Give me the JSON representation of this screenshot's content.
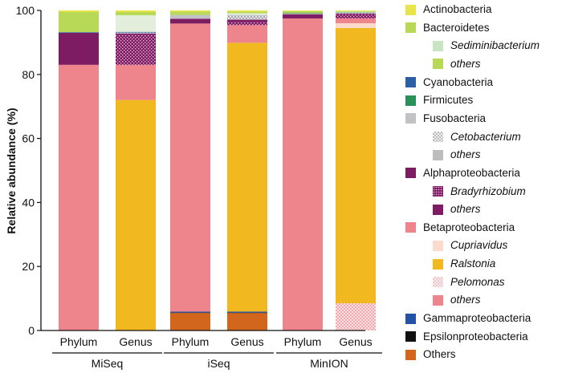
{
  "chart_data": {
    "type": "bar",
    "stacked": true,
    "ylabel": "Relative abundance (%)",
    "ylim": [
      0,
      100
    ],
    "yticks": [
      0,
      20,
      40,
      60,
      80,
      100
    ],
    "grid": false,
    "legend_position": "right",
    "categories": [
      "Phylum",
      "Genus",
      "Phylum",
      "Genus",
      "Phylum",
      "Genus"
    ],
    "groups": [
      {
        "label": "MiSeq",
        "bars": [
          0,
          1
        ]
      },
      {
        "label": "iSeq",
        "bars": [
          2,
          3
        ]
      },
      {
        "label": "MinION",
        "bars": [
          4,
          5
        ]
      }
    ],
    "series": [
      {
        "name": "Others",
        "color": "#d2661c",
        "pattern": "solid",
        "values": [
          0,
          0,
          5.5,
          5.5,
          0,
          0
        ]
      },
      {
        "name": "Epsilonproteobacteria",
        "color": "#111111",
        "pattern": "solid",
        "values": [
          0,
          0,
          0.1,
          0.1,
          0,
          0
        ]
      },
      {
        "name": "Gammaproteobacteria",
        "color": "#2452a6",
        "pattern": "solid",
        "values": [
          0,
          0,
          0.3,
          0.3,
          0,
          0
        ]
      },
      {
        "name": "Betaproteobacteria",
        "color": "#ee858c",
        "pattern": "solid",
        "values": [
          83,
          0,
          90,
          0,
          97.5,
          0
        ]
      },
      {
        "name": "Pelomonas",
        "color": "#f6c0c4",
        "pattern": "checker",
        "values": [
          0,
          0,
          0,
          0,
          0,
          8.5
        ]
      },
      {
        "name": "Ralstonia",
        "color": "#f1b820",
        "pattern": "solid",
        "values": [
          0,
          72,
          0,
          84,
          0,
          86
        ]
      },
      {
        "name": "Cupriavidus",
        "color": "#fbdccc",
        "pattern": "solid",
        "values": [
          0,
          0,
          0,
          0,
          0,
          1.5
        ]
      },
      {
        "name": "Betaproteobacteria others",
        "color": "#ee858c",
        "pattern": "solid",
        "values": [
          0,
          11,
          0,
          5.5,
          0,
          1.5
        ]
      },
      {
        "name": "Alphaproteobacteria",
        "color": "#7e1c63",
        "pattern": "solid",
        "values": [
          10,
          0,
          1.5,
          0,
          1.3,
          0
        ]
      },
      {
        "name": "Bradyrhizobium",
        "color": "#7e1c63",
        "pattern": "dots",
        "values": [
          0,
          9.3,
          0,
          1,
          0,
          1.2
        ]
      },
      {
        "name": "Alphaproteobacteria others",
        "color": "#7e1c63",
        "pattern": "solid",
        "values": [
          0,
          0.5,
          0,
          0.7,
          0,
          0.3
        ]
      },
      {
        "name": "Fusobacteria",
        "color": "#c2c2c6",
        "pattern": "solid",
        "values": [
          0,
          0,
          1.2,
          0,
          0.2,
          0
        ]
      },
      {
        "name": "Cetobacterium",
        "color": "#b8b8bc",
        "pattern": "checker",
        "values": [
          0,
          0.3,
          0,
          1.2,
          0,
          0.3
        ]
      },
      {
        "name": "Fusobacteria others",
        "color": "#bdbdbd",
        "pattern": "solid",
        "values": [
          0,
          0,
          0,
          0.3,
          0,
          0
        ]
      },
      {
        "name": "Firmicutes",
        "color": "#2b8f59",
        "pattern": "solid",
        "values": [
          0,
          0,
          0,
          0,
          0.2,
          0.1
        ]
      },
      {
        "name": "Cyanobacteria",
        "color": "#2d5ea8",
        "pattern": "solid",
        "values": [
          0.2,
          0.2,
          0,
          0,
          0,
          0
        ]
      },
      {
        "name": "Bacteroidetes",
        "color": "#b7d957",
        "pattern": "solid",
        "values": [
          6.3,
          0,
          1,
          0,
          0.6,
          0
        ]
      },
      {
        "name": "Sediminibacterium",
        "color": "#e3efdc",
        "pattern": "solid",
        "values": [
          0,
          5.2,
          0,
          0.5,
          0,
          0.2
        ]
      },
      {
        "name": "Bacteroidetes others",
        "color": "#b7d957",
        "pattern": "solid",
        "values": [
          0,
          1,
          0,
          0.5,
          0,
          0.2
        ]
      },
      {
        "name": "Actinobacteria",
        "color": "#e8e44a",
        "pattern": "solid",
        "values": [
          0.5,
          0.5,
          0.4,
          0.4,
          0.2,
          0.2
        ]
      }
    ],
    "legend": [
      {
        "label": "Actinobacteria",
        "color": "#e8e44a",
        "pattern": "solid",
        "sub": false
      },
      {
        "label": "Bacteroidetes",
        "color": "#b7d957",
        "pattern": "solid",
        "sub": false
      },
      {
        "label": "Sediminibacterium",
        "color": "#c8e4c0",
        "pattern": "solid",
        "sub": true
      },
      {
        "label": "others",
        "color": "#b7d957",
        "pattern": "solid",
        "sub": true
      },
      {
        "label": "Cyanobacteria",
        "color": "#2d5ea8",
        "pattern": "solid",
        "sub": false
      },
      {
        "label": "Firmicutes",
        "color": "#2b8f59",
        "pattern": "solid",
        "sub": false
      },
      {
        "label": "Fusobacteria",
        "color": "#c2c2c6",
        "pattern": "solid",
        "sub": false
      },
      {
        "label": "Cetobacterium",
        "color": "#b8b8bc",
        "pattern": "checker",
        "sub": true
      },
      {
        "label": "others",
        "color": "#bdbdbd",
        "pattern": "solid",
        "sub": true
      },
      {
        "label": "Alphaproteobacteria",
        "color": "#7e1c63",
        "pattern": "solid",
        "sub": false
      },
      {
        "label": "Bradyrhizobium",
        "color": "#7e1c63",
        "pattern": "dots",
        "sub": true
      },
      {
        "label": "others",
        "color": "#7e1c63",
        "pattern": "solid",
        "sub": true
      },
      {
        "label": "Betaproteobacteria",
        "color": "#ee858c",
        "pattern": "solid",
        "sub": false
      },
      {
        "label": "Cupriavidus",
        "color": "#fbdccc",
        "pattern": "solid",
        "sub": true
      },
      {
        "label": "Ralstonia",
        "color": "#f1b820",
        "pattern": "solid",
        "sub": true
      },
      {
        "label": "Pelomonas",
        "color": "#f6c0c4",
        "pattern": "checker",
        "sub": true
      },
      {
        "label": "others",
        "color": "#ee858c",
        "pattern": "solid",
        "sub": true
      },
      {
        "label": "Gammaproteobacteria",
        "color": "#2452a6",
        "pattern": "solid",
        "sub": false
      },
      {
        "label": "Epsilonproteobacteria",
        "color": "#111111",
        "pattern": "solid",
        "sub": false
      },
      {
        "label": "Others",
        "color": "#d2661c",
        "pattern": "solid",
        "sub": false
      }
    ]
  }
}
